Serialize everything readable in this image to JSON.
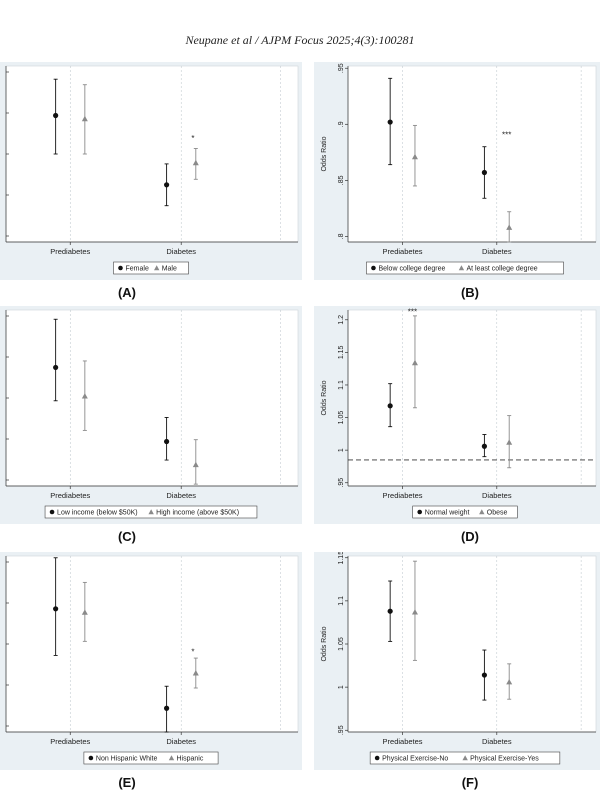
{
  "header": "Neupane et al / AJPM Focus  2025;4(3):100281",
  "colors": {
    "series1": "#111111",
    "series2": "#8a8a8a",
    "background": "#eaf0f4"
  },
  "panels": [
    {
      "id": "A",
      "label": "(A)",
      "chart_data": {
        "type": "scatter",
        "title": "",
        "xlabel": "",
        "ylabel": "",
        "categories": [
          "Prediabetes",
          "Diabetes"
        ],
        "yticks": [],
        "ylim": [
          0.8,
          0.96
        ],
        "series": [
          {
            "name": "Female",
            "marker": "circle",
            "values": [
              0.915,
              0.852
            ],
            "ci_low": [
              0.88,
              0.833
            ],
            "ci_high": [
              0.948,
              0.871
            ]
          },
          {
            "name": "Male",
            "marker": "triangle",
            "values": [
              0.912,
              0.872
            ],
            "ci_low": [
              0.88,
              0.857
            ],
            "ci_high": [
              0.943,
              0.885
            ]
          }
        ],
        "annotations": [
          {
            "text": "*",
            "category": "Diabetes",
            "y": 0.892
          }
        ],
        "legend": "bottom"
      }
    },
    {
      "id": "B",
      "label": "(B)",
      "chart_data": {
        "type": "scatter",
        "title": "",
        "xlabel": "",
        "ylabel": "Odds Ratio",
        "categories": [
          "Prediabetes",
          "Diabetes"
        ],
        "yticks": [
          ".8",
          ".85",
          ".9",
          ".95"
        ],
        "ylim": [
          0.795,
          0.952
        ],
        "series": [
          {
            "name": "Below college degree",
            "marker": "circle",
            "values": [
              0.902,
              0.857
            ],
            "ci_low": [
              0.864,
              0.834
            ],
            "ci_high": [
              0.941,
              0.88
            ]
          },
          {
            "name": "At least college degree",
            "marker": "triangle",
            "values": [
              0.871,
              0.808
            ],
            "ci_low": [
              0.845,
              0.795
            ],
            "ci_high": [
              0.899,
              0.822
            ]
          }
        ],
        "annotations": [
          {
            "text": "***",
            "category": "Diabetes",
            "y": 0.888
          }
        ],
        "legend": "bottom"
      }
    },
    {
      "id": "C",
      "label": "(C)",
      "chart_data": {
        "type": "scatter",
        "title": "",
        "xlabel": "",
        "ylabel": "",
        "categories": [
          "Prediabetes",
          "Diabetes"
        ],
        "yticks": [],
        "ylim": [
          0.93,
          1.12
        ],
        "series": [
          {
            "name": "Low income (below $50K)",
            "marker": "circle",
            "values": [
              1.058,
              0.978
            ],
            "ci_low": [
              1.022,
              0.958
            ],
            "ci_high": [
              1.11,
              1.004
            ]
          },
          {
            "name": "High income (above $50K)",
            "marker": "triangle",
            "values": [
              1.027,
              0.953
            ],
            "ci_low": [
              0.99,
              0.932
            ],
            "ci_high": [
              1.065,
              0.98
            ]
          }
        ],
        "annotations": [],
        "legend": "bottom"
      }
    },
    {
      "id": "D",
      "label": "(D)",
      "chart_data": {
        "type": "scatter",
        "title": "",
        "xlabel": "",
        "ylabel": "Odds Ratio",
        "categories": [
          "Prediabetes",
          "Diabetes"
        ],
        "yticks": [
          ".95",
          "1",
          "1.05",
          "1.1",
          "1.15",
          "1.2"
        ],
        "ylim": [
          0.945,
          1.215
        ],
        "series": [
          {
            "name": "Normal weight",
            "marker": "circle",
            "values": [
              1.068,
              1.006
            ],
            "ci_low": [
              1.036,
              0.99
            ],
            "ci_high": [
              1.102,
              1.024
            ]
          },
          {
            "name": "Obese",
            "marker": "triangle",
            "values": [
              1.134,
              1.012
            ],
            "ci_low": [
              1.065,
              0.973
            ],
            "ci_high": [
              1.206,
              1.053
            ]
          }
        ],
        "reference_line": 0.985,
        "annotations": [
          {
            "text": "***",
            "category": "Prediabetes",
            "y": 1.208
          }
        ],
        "legend": "bottom"
      }
    },
    {
      "id": "E",
      "label": "(E)",
      "chart_data": {
        "type": "scatter",
        "title": "",
        "xlabel": "",
        "ylabel": "",
        "categories": [
          "Prediabetes",
          "Diabetes"
        ],
        "yticks": [],
        "ylim": [
          0.9,
          1.1
        ],
        "series": [
          {
            "name": "Non Hispanic White",
            "marker": "circle",
            "values": [
              1.04,
              0.927
            ],
            "ci_low": [
              0.987,
              0.9
            ],
            "ci_high": [
              1.098,
              0.952
            ]
          },
          {
            "name": "Hispanic",
            "marker": "triangle",
            "values": [
              1.036,
              0.967
            ],
            "ci_low": [
              1.003,
              0.95
            ],
            "ci_high": [
              1.07,
              0.984
            ]
          }
        ],
        "annotations": [
          {
            "text": "*",
            "category": "Diabetes",
            "y": 0.988
          }
        ],
        "legend": "bottom"
      }
    },
    {
      "id": "F",
      "label": "(F)",
      "chart_data": {
        "type": "scatter",
        "title": "",
        "xlabel": "",
        "ylabel": "Odds Ratio",
        "categories": [
          "Prediabetes",
          "Diabetes"
        ],
        "yticks": [
          ".95",
          "1",
          "1.05",
          "1.1",
          "1.15"
        ],
        "ylim": [
          0.948,
          1.152
        ],
        "series": [
          {
            "name": "Physical Exercise-No",
            "marker": "circle",
            "values": [
              1.088,
              1.014
            ],
            "ci_low": [
              1.053,
              0.985
            ],
            "ci_high": [
              1.123,
              1.043
            ]
          },
          {
            "name": "Physical Exercise-Yes",
            "marker": "triangle",
            "values": [
              1.087,
              1.006
            ],
            "ci_low": [
              1.031,
              0.986
            ],
            "ci_high": [
              1.146,
              1.027
            ]
          }
        ],
        "annotations": [],
        "legend": "bottom"
      }
    }
  ]
}
